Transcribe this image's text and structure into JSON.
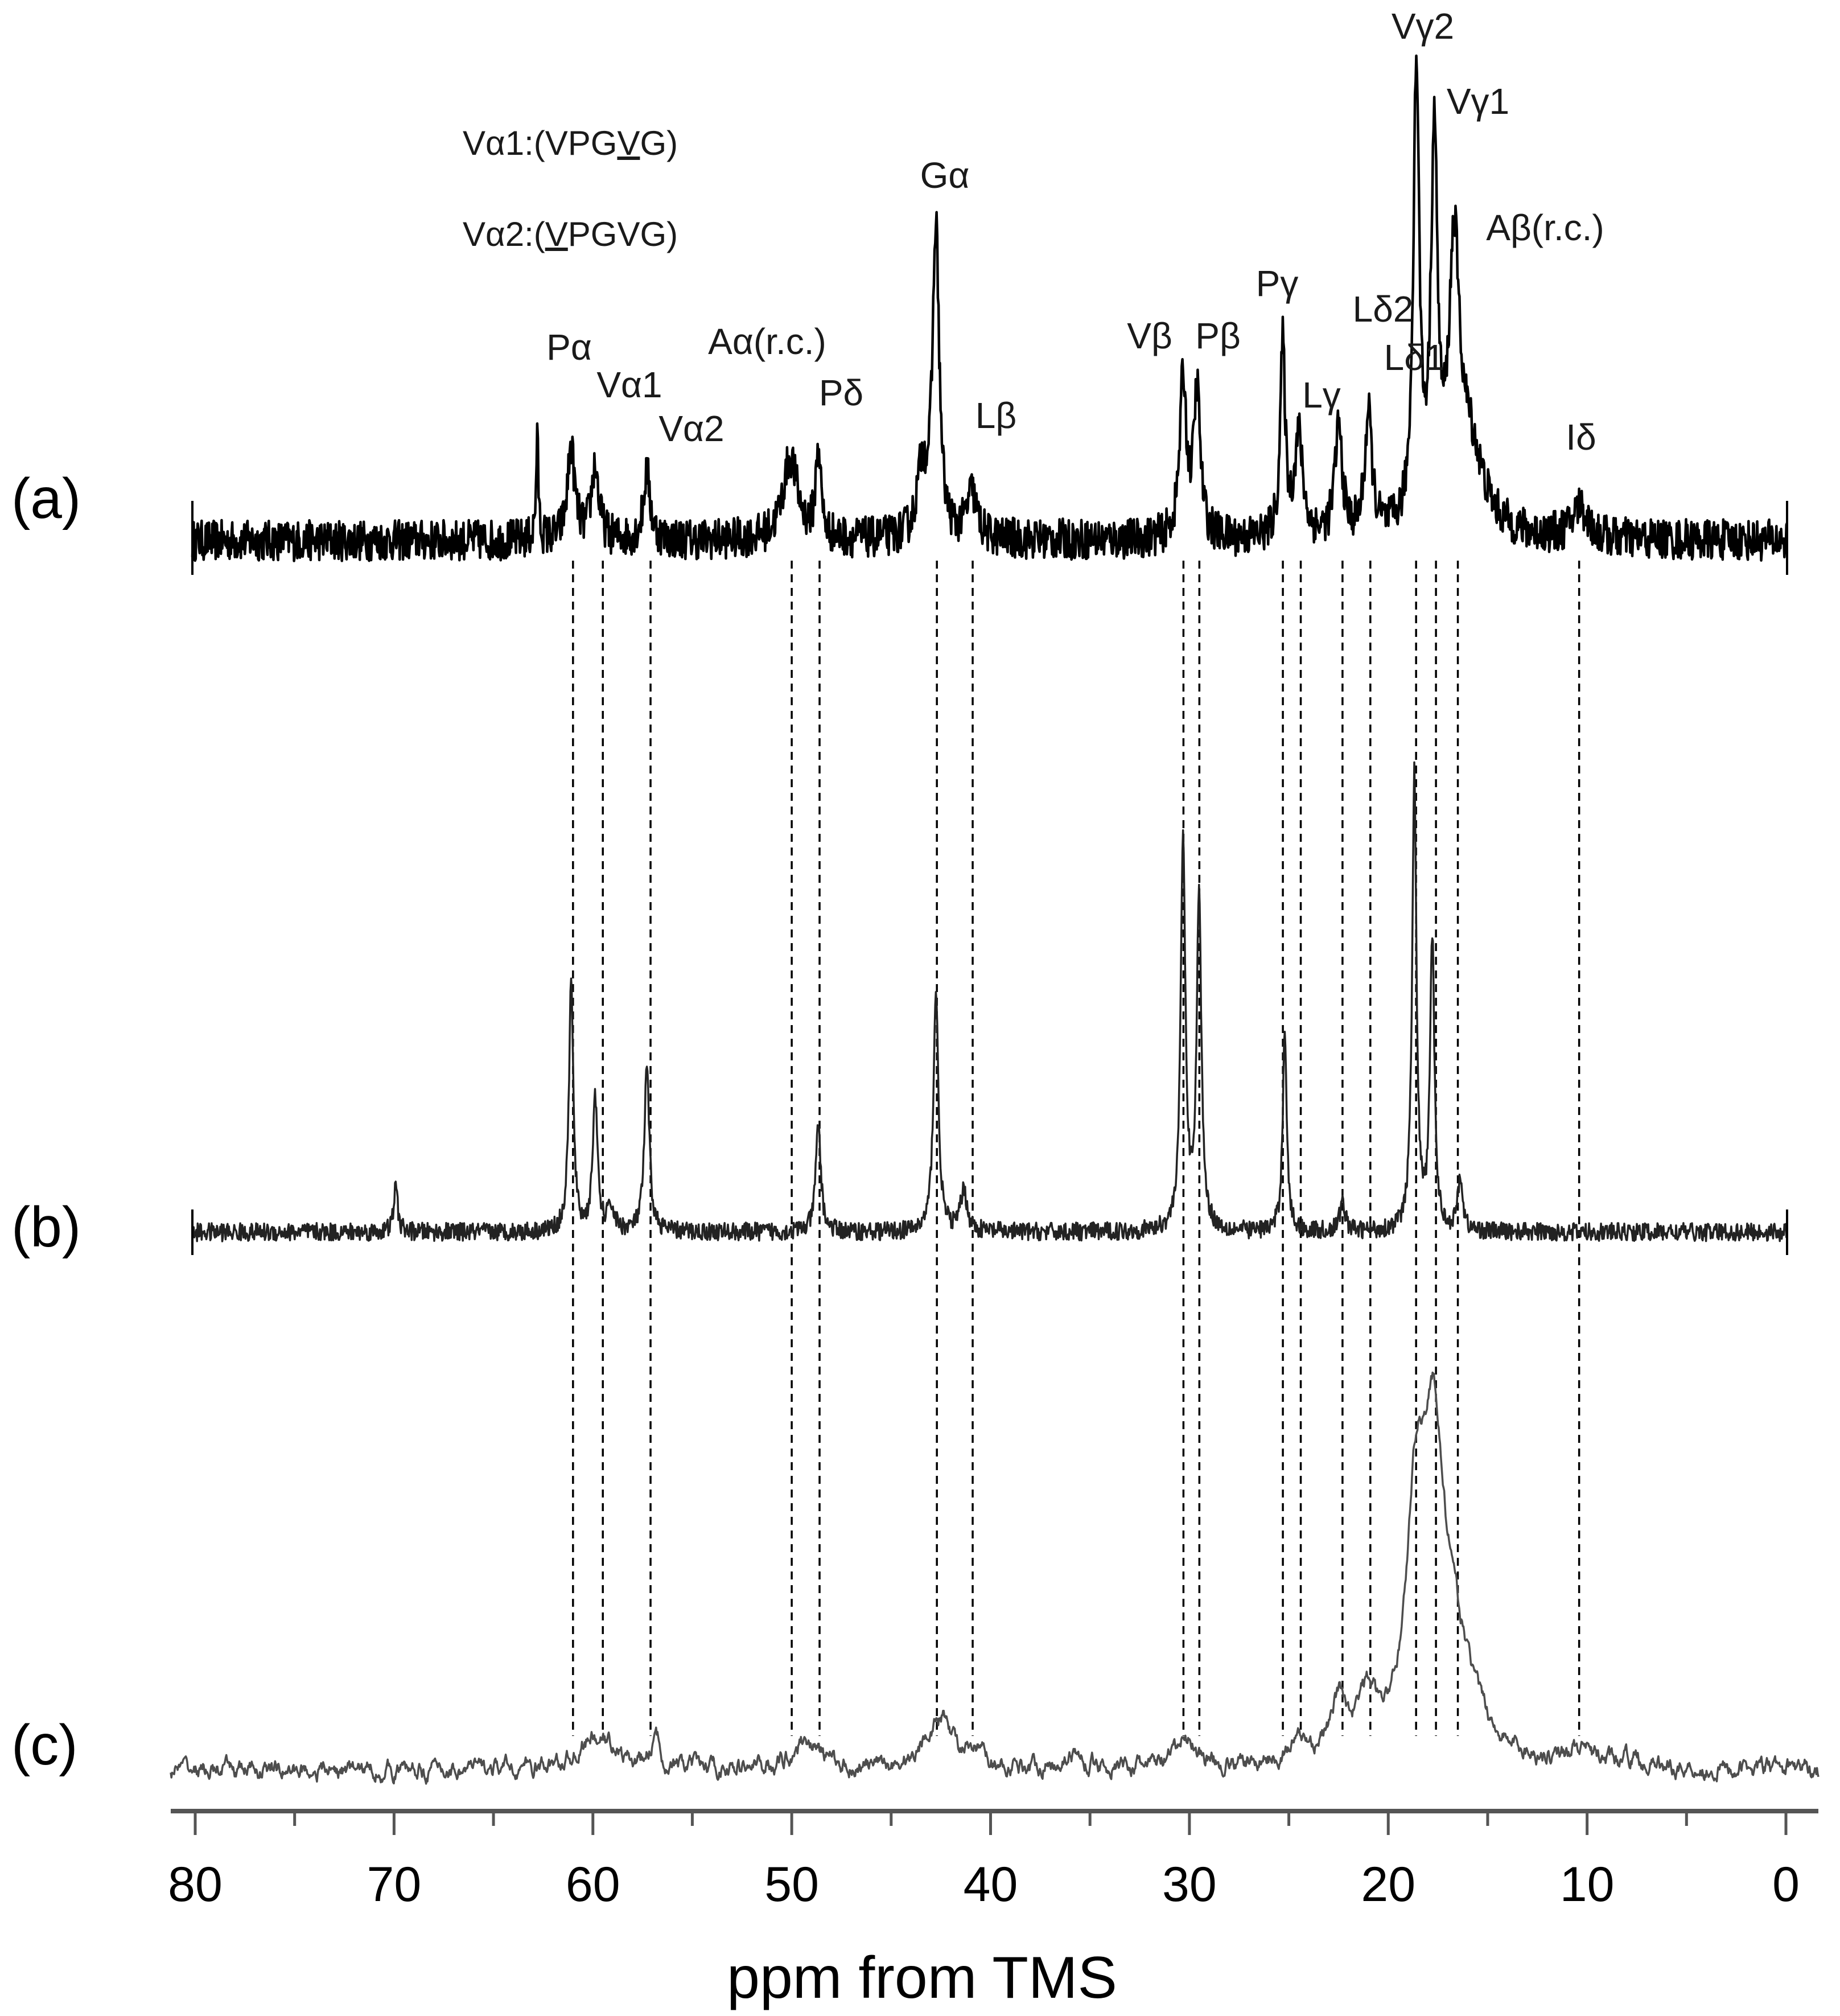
{
  "chart_data": {
    "type": "line",
    "xlabel": "ppm from TMS",
    "x_range": [
      80,
      0
    ],
    "x_reversed": true,
    "xticks": [
      80,
      70,
      60,
      50,
      40,
      30,
      20,
      10,
      0
    ],
    "grid": false,
    "header_labels": [
      {
        "id": "va1-def",
        "prefix": "Vα1:(VPG",
        "underlined": "V",
        "suffix": "G)"
      },
      {
        "id": "va2-def",
        "prefix": "Vα2:(",
        "underlined": "V",
        "suffix": "PGVG)"
      }
    ],
    "peak_assignments": [
      {
        "label": "Pα",
        "ppm": 61.0
      },
      {
        "label": "Vα1",
        "ppm": 59.5
      },
      {
        "label": "Vα2",
        "ppm": 57.1
      },
      {
        "label": "Aα(r.c.)",
        "ppm": 50.0
      },
      {
        "label": "Pδ",
        "ppm": 48.6
      },
      {
        "label": "Gα",
        "ppm": 42.7
      },
      {
        "label": "Lβ",
        "ppm": 40.9
      },
      {
        "label": "Vβ",
        "ppm": 30.3
      },
      {
        "label": "Pβ",
        "ppm": 29.5
      },
      {
        "label": "Pγ",
        "ppm": 25.3
      },
      {
        "label": "Lγ",
        "ppm": 24.4
      },
      {
        "label": "Lδ2",
        "ppm": 22.3
      },
      {
        "label": "Lδ1",
        "ppm": 20.9
      },
      {
        "label": "Vγ2",
        "ppm": 18.6
      },
      {
        "label": "Vγ1",
        "ppm": 17.6
      },
      {
        "label": "Aβ(r.c.)",
        "ppm": 16.5
      },
      {
        "label": "Iδ",
        "ppm": 10.4
      }
    ],
    "series": [
      {
        "name": "(a)",
        "color": "#000000",
        "x_range": [
          80,
          0
        ],
        "noise": 0.045,
        "peaks": [
          {
            "ppm": 62.7,
            "height": 0.22,
            "width": 0.07
          },
          {
            "ppm": 61.0,
            "height": 0.2,
            "width": 0.22
          },
          {
            "ppm": 59.8,
            "height": 0.16,
            "width": 0.22
          },
          {
            "ppm": 57.2,
            "height": 0.15,
            "width": 0.2
          },
          {
            "ppm": 50.0,
            "height": 0.18,
            "width": 0.45
          },
          {
            "ppm": 48.6,
            "height": 0.2,
            "width": 0.15
          },
          {
            "ppm": 43.4,
            "height": 0.14,
            "width": 0.3
          },
          {
            "ppm": 42.7,
            "height": 0.68,
            "width": 0.2
          },
          {
            "ppm": 40.9,
            "height": 0.1,
            "width": 0.3
          },
          {
            "ppm": 30.3,
            "height": 0.35,
            "width": 0.2
          },
          {
            "ppm": 29.6,
            "height": 0.32,
            "width": 0.2
          },
          {
            "ppm": 25.3,
            "height": 0.42,
            "width": 0.15
          },
          {
            "ppm": 24.5,
            "height": 0.22,
            "width": 0.25
          },
          {
            "ppm": 22.5,
            "height": 0.24,
            "width": 0.22
          },
          {
            "ppm": 21.0,
            "height": 0.26,
            "width": 0.22
          },
          {
            "ppm": 18.6,
            "height": 1.0,
            "width": 0.18
          },
          {
            "ppm": 17.7,
            "height": 0.82,
            "width": 0.2
          },
          {
            "ppm": 16.7,
            "height": 0.55,
            "width": 0.3
          },
          {
            "ppm": 16.0,
            "height": 0.2,
            "width": 0.9
          },
          {
            "ppm": 10.4,
            "height": 0.07,
            "width": 0.45
          }
        ]
      },
      {
        "name": "(b)",
        "color": "#222222",
        "x_range": [
          80,
          0
        ],
        "noise": 0.02,
        "peaks": [
          {
            "ppm": 69.8,
            "height": 0.1,
            "width": 0.12
          },
          {
            "ppm": 61.0,
            "height": 0.55,
            "width": 0.13
          },
          {
            "ppm": 59.8,
            "height": 0.3,
            "width": 0.14
          },
          {
            "ppm": 59.0,
            "height": 0.05,
            "width": 0.2
          },
          {
            "ppm": 57.2,
            "height": 0.36,
            "width": 0.15
          },
          {
            "ppm": 48.6,
            "height": 0.24,
            "width": 0.15
          },
          {
            "ppm": 42.7,
            "height": 0.53,
            "width": 0.15
          },
          {
            "ppm": 41.3,
            "height": 0.09,
            "width": 0.2
          },
          {
            "ppm": 30.3,
            "height": 0.86,
            "width": 0.14
          },
          {
            "ppm": 29.5,
            "height": 0.73,
            "width": 0.14
          },
          {
            "ppm": 25.2,
            "height": 0.45,
            "width": 0.12
          },
          {
            "ppm": 22.3,
            "height": 0.07,
            "width": 0.15
          },
          {
            "ppm": 18.7,
            "height": 1.0,
            "width": 0.13
          },
          {
            "ppm": 17.8,
            "height": 0.64,
            "width": 0.13
          },
          {
            "ppm": 16.4,
            "height": 0.12,
            "width": 0.14
          }
        ]
      },
      {
        "name": "(c)",
        "color": "#4d4d4d",
        "x_range": [
          82,
          -2
        ],
        "noise": 0.03,
        "peaks": [
          {
            "ppm": 60.6,
            "height": 0.09,
            "width": 0.8
          },
          {
            "ppm": 59.5,
            "height": 0.05,
            "width": 0.6
          },
          {
            "ppm": 57.3,
            "height": 0.1,
            "width": 0.3
          },
          {
            "ppm": 49.6,
            "height": 0.1,
            "width": 0.8
          },
          {
            "ppm": 43.3,
            "height": 0.09,
            "width": 0.6
          },
          {
            "ppm": 42.5,
            "height": 0.13,
            "width": 0.6
          },
          {
            "ppm": 40.8,
            "height": 0.04,
            "width": 0.5
          },
          {
            "ppm": 36.1,
            "height": 0.04,
            "width": 0.8
          },
          {
            "ppm": 30.2,
            "height": 0.1,
            "width": 0.6
          },
          {
            "ppm": 24.5,
            "height": 0.06,
            "width": 0.8
          },
          {
            "ppm": 22.4,
            "height": 0.18,
            "width": 0.55
          },
          {
            "ppm": 21.0,
            "height": 0.18,
            "width": 0.55
          },
          {
            "ppm": 18.5,
            "height": 0.74,
            "width": 0.6
          },
          {
            "ppm": 17.6,
            "height": 0.82,
            "width": 0.6
          },
          {
            "ppm": 16.6,
            "height": 0.35,
            "width": 1.3
          },
          {
            "ppm": 10.4,
            "height": 0.05,
            "width": 0.8
          },
          {
            "ppm": 7.5,
            "height": 0.03,
            "width": 0.6
          }
        ]
      }
    ]
  }
}
